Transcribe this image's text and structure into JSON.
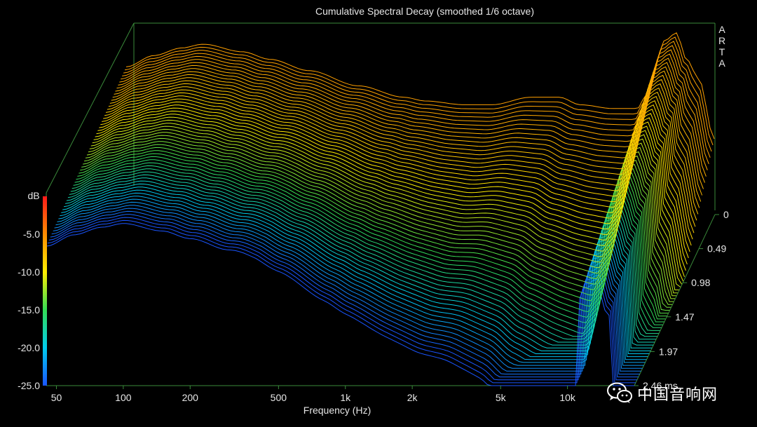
{
  "chart_data": {
    "type": "waterfall-3d",
    "title": "Cumulative Spectral Decay (smoothed 1/6 octave)",
    "brand_letters": [
      "A",
      "R",
      "T",
      "A"
    ],
    "xlabel": "Frequency (Hz)",
    "x_scale": "log",
    "x_ticks": [
      {
        "value": 50,
        "label": "50"
      },
      {
        "value": 100,
        "label": "100"
      },
      {
        "value": 200,
        "label": "200"
      },
      {
        "value": 500,
        "label": "500"
      },
      {
        "value": 1000,
        "label": "1k"
      },
      {
        "value": 2000,
        "label": "2k"
      },
      {
        "value": 5000,
        "label": "5k"
      },
      {
        "value": 10000,
        "label": "10k"
      }
    ],
    "x_range_hz": [
      45,
      20000
    ],
    "zlabel": "dB",
    "z_range_db": [
      -25,
      0
    ],
    "z_ticks": [
      {
        "value": -5,
        "label": "-5.0"
      },
      {
        "value": -10,
        "label": "-10.0"
      },
      {
        "value": -15,
        "label": "-15.0"
      },
      {
        "value": -20,
        "label": "-20.0"
      },
      {
        "value": -25,
        "label": "-25.0"
      }
    ],
    "time_unit": "ms",
    "time_ticks": [
      {
        "value": 0,
        "label": "0"
      },
      {
        "value": 0.49,
        "label": "0.49"
      },
      {
        "value": 0.98,
        "label": "0.98"
      },
      {
        "value": 1.47,
        "label": "1.47"
      },
      {
        "value": 1.97,
        "label": "1.97"
      },
      {
        "value": 2.46,
        "label": "2.46 ms"
      }
    ],
    "time_range_ms": [
      0,
      2.46
    ],
    "slice_count": 60,
    "initial_response_db": [
      {
        "hz": 45,
        "db": -5.5
      },
      {
        "hz": 60,
        "db": -4.0
      },
      {
        "hz": 80,
        "db": -3.0
      },
      {
        "hz": 100,
        "db": -2.5
      },
      {
        "hz": 150,
        "db": -3.5
      },
      {
        "hz": 200,
        "db": -4.5
      },
      {
        "hz": 300,
        "db": -6.0
      },
      {
        "hz": 500,
        "db": -8.0
      },
      {
        "hz": 800,
        "db": -9.5
      },
      {
        "hz": 1000,
        "db": -10.0
      },
      {
        "hz": 1500,
        "db": -10.5
      },
      {
        "hz": 2000,
        "db": -10.5
      },
      {
        "hz": 3000,
        "db": -9.5
      },
      {
        "hz": 4000,
        "db": -9.5
      },
      {
        "hz": 5000,
        "db": -10.5
      },
      {
        "hz": 7000,
        "db": -11.0
      },
      {
        "hz": 9000,
        "db": -11.0
      },
      {
        "hz": 10000,
        "db": -9.0
      },
      {
        "hz": 12000,
        "db": -2.0
      },
      {
        "hz": 13500,
        "db": -1.0
      },
      {
        "hz": 15000,
        "db": -4.5
      },
      {
        "hz": 17000,
        "db": -7.0
      },
      {
        "hz": 20000,
        "db": -15.0
      }
    ],
    "colorbar_colors": [
      "#ff1a1a",
      "#ff8c00",
      "#ffee00",
      "#33dd55",
      "#00ccee",
      "#1a55ff"
    ]
  },
  "watermark": {
    "text": "中国音响网",
    "icon": "wechat-icon"
  }
}
